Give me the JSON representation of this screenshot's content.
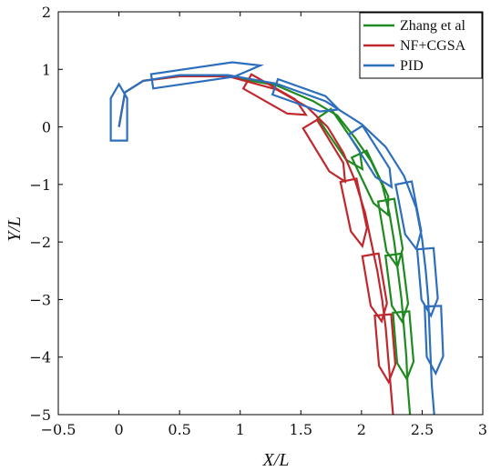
{
  "chart_data": {
    "type": "line",
    "xlabel": "X/L",
    "ylabel": "Y/L",
    "xlim": [
      -0.5,
      3
    ],
    "ylim": [
      -5,
      2
    ],
    "x_ticks": [
      "−0.5",
      "0",
      "0.5",
      "1",
      "1.5",
      "2",
      "2.5",
      "3"
    ],
    "y_ticks": [
      "2",
      "1",
      "0",
      "−1",
      "−2",
      "−3",
      "−4",
      "−5"
    ],
    "legend_position": "top-right",
    "series": [
      {
        "name": "Zhang et al",
        "color": "#1f8a1f",
        "path": [
          [
            0.0,
            0.0
          ],
          [
            0.05,
            0.6
          ],
          [
            0.2,
            0.8
          ],
          [
            0.5,
            0.88
          ],
          [
            0.9,
            0.88
          ],
          [
            1.3,
            0.72
          ],
          [
            1.6,
            0.45
          ],
          [
            1.8,
            0.2
          ],
          [
            1.95,
            -0.2
          ],
          [
            2.08,
            -0.6
          ],
          [
            2.17,
            -1.0
          ],
          [
            2.23,
            -1.5
          ],
          [
            2.27,
            -2.0
          ],
          [
            2.3,
            -2.5
          ],
          [
            2.33,
            -3.0
          ],
          [
            2.35,
            -3.5
          ],
          [
            2.37,
            -4.0
          ],
          [
            2.38,
            -4.5
          ],
          [
            2.4,
            -5.0
          ]
        ],
        "hull_points": [
          [
            1.85,
            -0.25
          ],
          [
            2.1,
            -1.0
          ],
          [
            2.25,
            -1.85
          ],
          [
            2.3,
            -2.8
          ],
          [
            2.35,
            -3.8
          ]
        ]
      },
      {
        "name": "NF+CGSA",
        "color": "#c0282d",
        "path": [
          [
            0.0,
            0.0
          ],
          [
            0.05,
            0.6
          ],
          [
            0.2,
            0.8
          ],
          [
            0.5,
            0.88
          ],
          [
            0.9,
            0.88
          ],
          [
            1.3,
            0.65
          ],
          [
            1.55,
            0.35
          ],
          [
            1.72,
            0.0
          ],
          [
            1.85,
            -0.45
          ],
          [
            1.95,
            -0.95
          ],
          [
            2.03,
            -1.5
          ],
          [
            2.08,
            -2.0
          ],
          [
            2.13,
            -2.5
          ],
          [
            2.17,
            -3.0
          ],
          [
            2.2,
            -3.5
          ],
          [
            2.22,
            -4.0
          ],
          [
            2.24,
            -4.5
          ],
          [
            2.26,
            -5.0
          ]
        ],
        "hull_points": [
          [
            1.3,
            0.5
          ],
          [
            1.72,
            -0.45
          ],
          [
            1.95,
            -1.5
          ],
          [
            2.12,
            -2.8
          ],
          [
            2.2,
            -3.85
          ]
        ]
      },
      {
        "name": "PID",
        "color": "#2e6fbd",
        "path": [
          [
            0.0,
            0.0
          ],
          [
            0.05,
            0.6
          ],
          [
            0.2,
            0.8
          ],
          [
            0.5,
            0.9
          ],
          [
            0.9,
            0.9
          ],
          [
            1.3,
            0.75
          ],
          [
            1.7,
            0.45
          ],
          [
            2.0,
            0.05
          ],
          [
            2.2,
            -0.35
          ],
          [
            2.35,
            -0.85
          ],
          [
            2.45,
            -1.4
          ],
          [
            2.5,
            -1.95
          ],
          [
            2.53,
            -2.5
          ],
          [
            2.55,
            -3.0
          ],
          [
            2.56,
            -3.5
          ],
          [
            2.57,
            -4.0
          ],
          [
            2.58,
            -4.5
          ],
          [
            2.6,
            -5.0
          ]
        ],
        "hull_points": [
          [
            1.55,
            0.5
          ],
          [
            2.1,
            -0.55
          ],
          [
            2.4,
            -1.55
          ],
          [
            2.55,
            -2.7
          ],
          [
            2.6,
            -3.7
          ]
        ]
      }
    ],
    "start_hull": {
      "color": "#2e6fbd",
      "center": [
        0.0,
        0.0
      ],
      "heading_deg": 90
    }
  }
}
